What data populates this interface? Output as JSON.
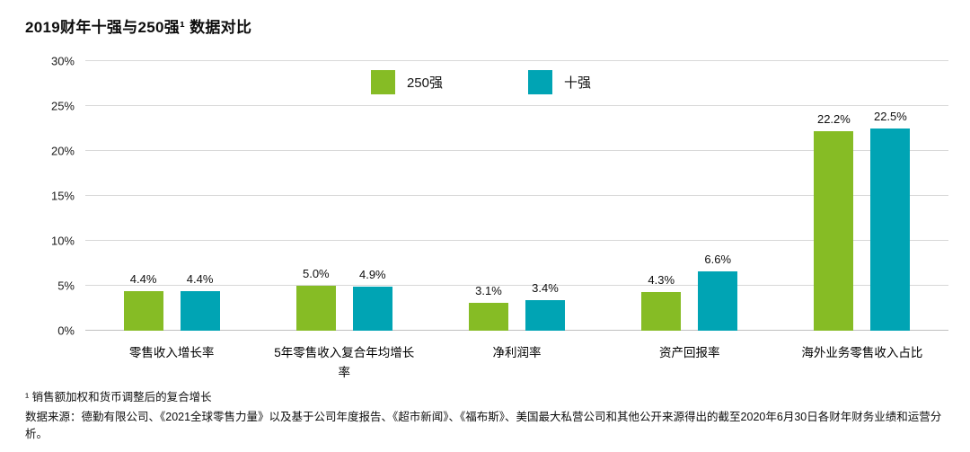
{
  "page": {
    "title": "2019财年十强与250强¹ 数据对比",
    "footnote_1": "¹ 销售额加权和货币调整后的复合增长",
    "footnote_source": "数据来源：德勤有限公司、《2021全球零售力量》以及基于公司年度报告、《超市新闻》、《福布斯》、美国最大私营公司和其他公开来源得出的截至2020年6月30日各财年财务业绩和运营分析。"
  },
  "chart_data": {
    "type": "bar",
    "title": "2019财年十强与250强数据对比",
    "categories": [
      "零售收入增长率",
      "5年零售收入复合年均增长率",
      "净利润率",
      "资产回报率",
      "海外业务零售收入占比"
    ],
    "series": [
      {
        "name": "250强",
        "color": "#86BC25",
        "values": [
          4.4,
          5.0,
          3.1,
          4.3,
          22.2
        ],
        "labels": [
          "4.4%",
          "5.0%",
          "3.1%",
          "4.3%",
          "22.2%"
        ]
      },
      {
        "name": "十强",
        "color": "#00A4B4",
        "values": [
          4.4,
          4.9,
          3.4,
          6.6,
          22.5
        ],
        "labels": [
          "4.4%",
          "4.9%",
          "3.4%",
          "6.6%",
          "22.5%"
        ]
      }
    ],
    "ylim": [
      0,
      30
    ],
    "yticks": [
      "0%",
      "5%",
      "10%",
      "15%",
      "20%",
      "25%",
      "30%"
    ],
    "grid": true,
    "legend_position": "top-center",
    "colors": {
      "green_250": "#86BC25",
      "teal_top10": "#00A4B4",
      "gridline": "#d8d8d8"
    }
  }
}
